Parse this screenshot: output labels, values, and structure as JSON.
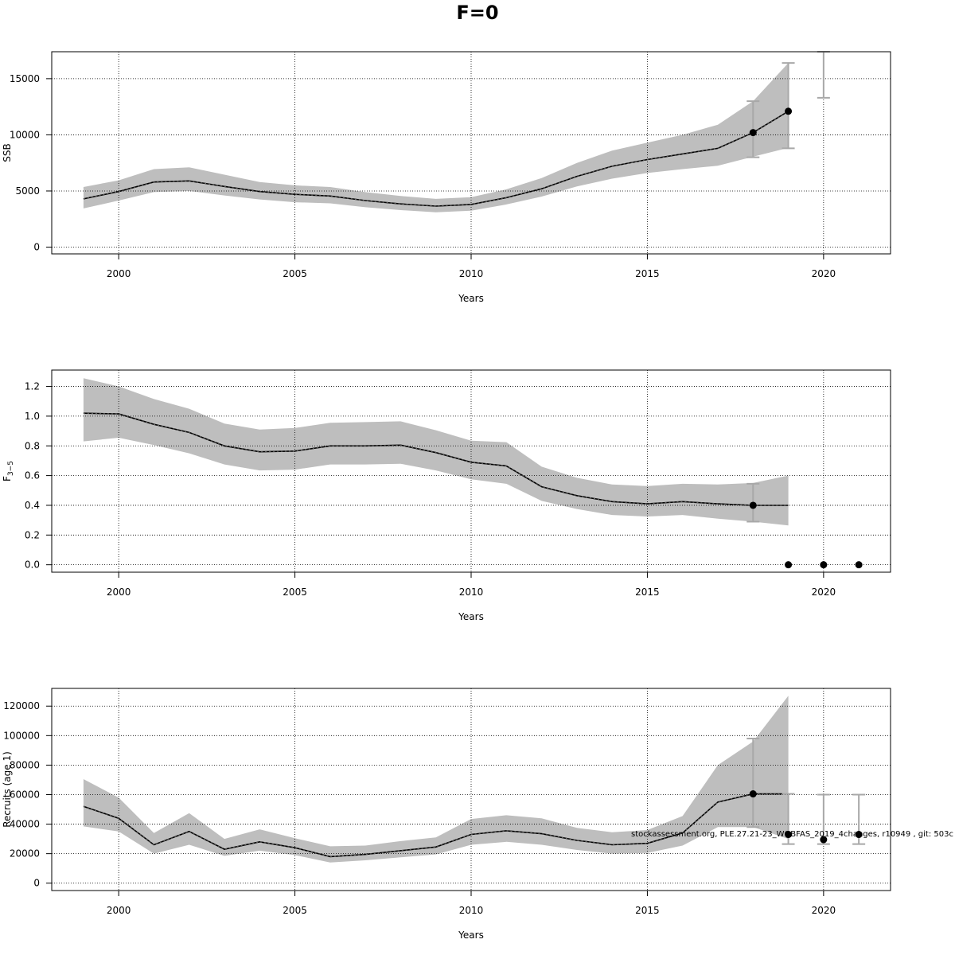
{
  "title": "F=0",
  "footnote": "stockassessment.org, PLE.27.21-23_WGBFAS_2019_4changes, r10949 , git: 503c",
  "colors": {
    "band": "#bebebe",
    "line": "#000000",
    "errorbar": "#a8a8a8",
    "grid": "#000000"
  },
  "chart_data": [
    {
      "type": "line",
      "title": "",
      "xlabel": "Years",
      "ylabel": "SSB",
      "xlim": [
        1998.1,
        2021.9
      ],
      "ylim": [
        -600,
        17400
      ],
      "x_ticks": [
        2000,
        2005,
        2010,
        2015,
        2020
      ],
      "y_ticks": [
        0,
        5000,
        10000,
        15000
      ],
      "y_tick_labels": [
        "0",
        "5000",
        "10000",
        "15000"
      ],
      "grid": true,
      "series": [
        {
          "x": [
            1999,
            2000,
            2001,
            2002,
            2003,
            2004,
            2005,
            2006,
            2007,
            2008,
            2009,
            2010,
            2011,
            2012,
            2013,
            2014,
            2015,
            2016,
            2017,
            2018,
            2019
          ],
          "values": [
            4300,
            4950,
            5800,
            5900,
            5400,
            4950,
            4700,
            4550,
            4150,
            3850,
            3650,
            3800,
            4400,
            5200,
            6300,
            7200,
            7800,
            8300,
            8800,
            10200,
            12100
          ],
          "lower": [
            3450,
            4150,
            4900,
            5000,
            4600,
            4250,
            4000,
            3900,
            3550,
            3300,
            3100,
            3250,
            3800,
            4500,
            5400,
            6100,
            6600,
            6950,
            7250,
            8050,
            8850
          ],
          "upper": [
            5350,
            5950,
            6950,
            7100,
            6450,
            5800,
            5500,
            5350,
            4900,
            4550,
            4300,
            4450,
            5150,
            6150,
            7500,
            8600,
            9300,
            10000,
            10900,
            13000,
            16400
          ]
        }
      ],
      "forecast_points": [
        {
          "x": 2018,
          "y": 10200,
          "lo": 8000,
          "hi": 13000
        },
        {
          "x": 2019,
          "y": 12100,
          "lo": 8800,
          "hi": 16400
        },
        {
          "x": 2020,
          "y": null,
          "lo": 13300,
          "hi": 17400
        }
      ]
    },
    {
      "type": "line",
      "title": "",
      "xlabel": "Years",
      "ylabel": "F3−5",
      "ylabel_main": "F",
      "ylabel_sub": "3−5",
      "xlim": [
        1998.1,
        2021.9
      ],
      "ylim": [
        -0.05,
        1.31
      ],
      "x_ticks": [
        2000,
        2005,
        2010,
        2015,
        2020
      ],
      "y_ticks": [
        0,
        0.2,
        0.4,
        0.6,
        0.8,
        1.0,
        1.2
      ],
      "y_tick_labels": [
        "0.0",
        "0.2",
        "0.4",
        "0.6",
        "0.8",
        "1.0",
        "1.2"
      ],
      "grid": true,
      "series": [
        {
          "x": [
            1999,
            2000,
            2001,
            2002,
            2003,
            2004,
            2005,
            2006,
            2007,
            2008,
            2009,
            2010,
            2011,
            2012,
            2013,
            2014,
            2015,
            2016,
            2017,
            2018,
            2019
          ],
          "values": [
            1.02,
            1.015,
            0.945,
            0.89,
            0.8,
            0.76,
            0.765,
            0.8,
            0.8,
            0.805,
            0.755,
            0.69,
            0.665,
            0.525,
            0.465,
            0.425,
            0.41,
            0.425,
            0.41,
            0.4,
            0.4
          ],
          "lower": [
            0.83,
            0.855,
            0.805,
            0.75,
            0.675,
            0.635,
            0.64,
            0.675,
            0.675,
            0.68,
            0.635,
            0.575,
            0.545,
            0.43,
            0.375,
            0.335,
            0.325,
            0.335,
            0.31,
            0.29,
            0.265
          ],
          "upper": [
            1.255,
            1.2,
            1.115,
            1.05,
            0.95,
            0.91,
            0.92,
            0.955,
            0.96,
            0.965,
            0.905,
            0.835,
            0.825,
            0.66,
            0.585,
            0.54,
            0.53,
            0.545,
            0.54,
            0.55,
            0.6
          ]
        }
      ],
      "forecast_points": [
        {
          "x": 2018,
          "y": 0.4,
          "lo": 0.29,
          "hi": 0.545
        },
        {
          "x": 2019,
          "y": 0.0,
          "lo": null,
          "hi": null
        },
        {
          "x": 2020,
          "y": 0.0,
          "lo": null,
          "hi": null
        },
        {
          "x": 2021,
          "y": 0.0,
          "lo": null,
          "hi": null
        }
      ]
    },
    {
      "type": "line",
      "title": "",
      "xlabel": "Years",
      "ylabel": "Recruits (age 1)",
      "xlim": [
        1998.1,
        2021.9
      ],
      "ylim": [
        -5000,
        132000
      ],
      "x_ticks": [
        2000,
        2005,
        2010,
        2015,
        2020
      ],
      "y_ticks": [
        0,
        20000,
        40000,
        60000,
        80000,
        100000,
        120000
      ],
      "y_tick_labels": [
        "0",
        "20000",
        "40000",
        "60000",
        "80000",
        "100000",
        "120000"
      ],
      "grid": true,
      "series": [
        {
          "x": [
            1999,
            2000,
            2001,
            2002,
            2003,
            2004,
            2005,
            2006,
            2007,
            2008,
            2009,
            2010,
            2011,
            2012,
            2013,
            2014,
            2015,
            2016,
            2017,
            2018,
            2019
          ],
          "values": [
            52000,
            44000,
            26000,
            35000,
            23000,
            28000,
            24000,
            18000,
            19500,
            22000,
            24500,
            33000,
            35500,
            33500,
            29000,
            26000,
            27000,
            34000,
            55000,
            60500,
            60500
          ],
          "lower": [
            38500,
            35000,
            20000,
            26000,
            18500,
            22000,
            19000,
            14000,
            15500,
            17500,
            19500,
            26000,
            28000,
            26000,
            22500,
            20000,
            20500,
            25500,
            38000,
            38000,
            30000
          ],
          "upper": [
            70500,
            58000,
            34000,
            47500,
            30000,
            36500,
            30500,
            25000,
            25500,
            28500,
            31000,
            43500,
            46000,
            44000,
            37500,
            34500,
            36000,
            45500,
            80000,
            96000,
            127000
          ]
        }
      ],
      "forecast_points": [
        {
          "x": 2018,
          "y": 60500,
          "lo": 38000,
          "hi": 98000
        },
        {
          "x": 2019,
          "y": 33000,
          "lo": 26500,
          "hi": 60500
        },
        {
          "x": 2020,
          "y": 29500,
          "lo": 26500,
          "hi": 60000
        },
        {
          "x": 2021,
          "y": 33000,
          "lo": 26500,
          "hi": 60000
        }
      ]
    }
  ]
}
